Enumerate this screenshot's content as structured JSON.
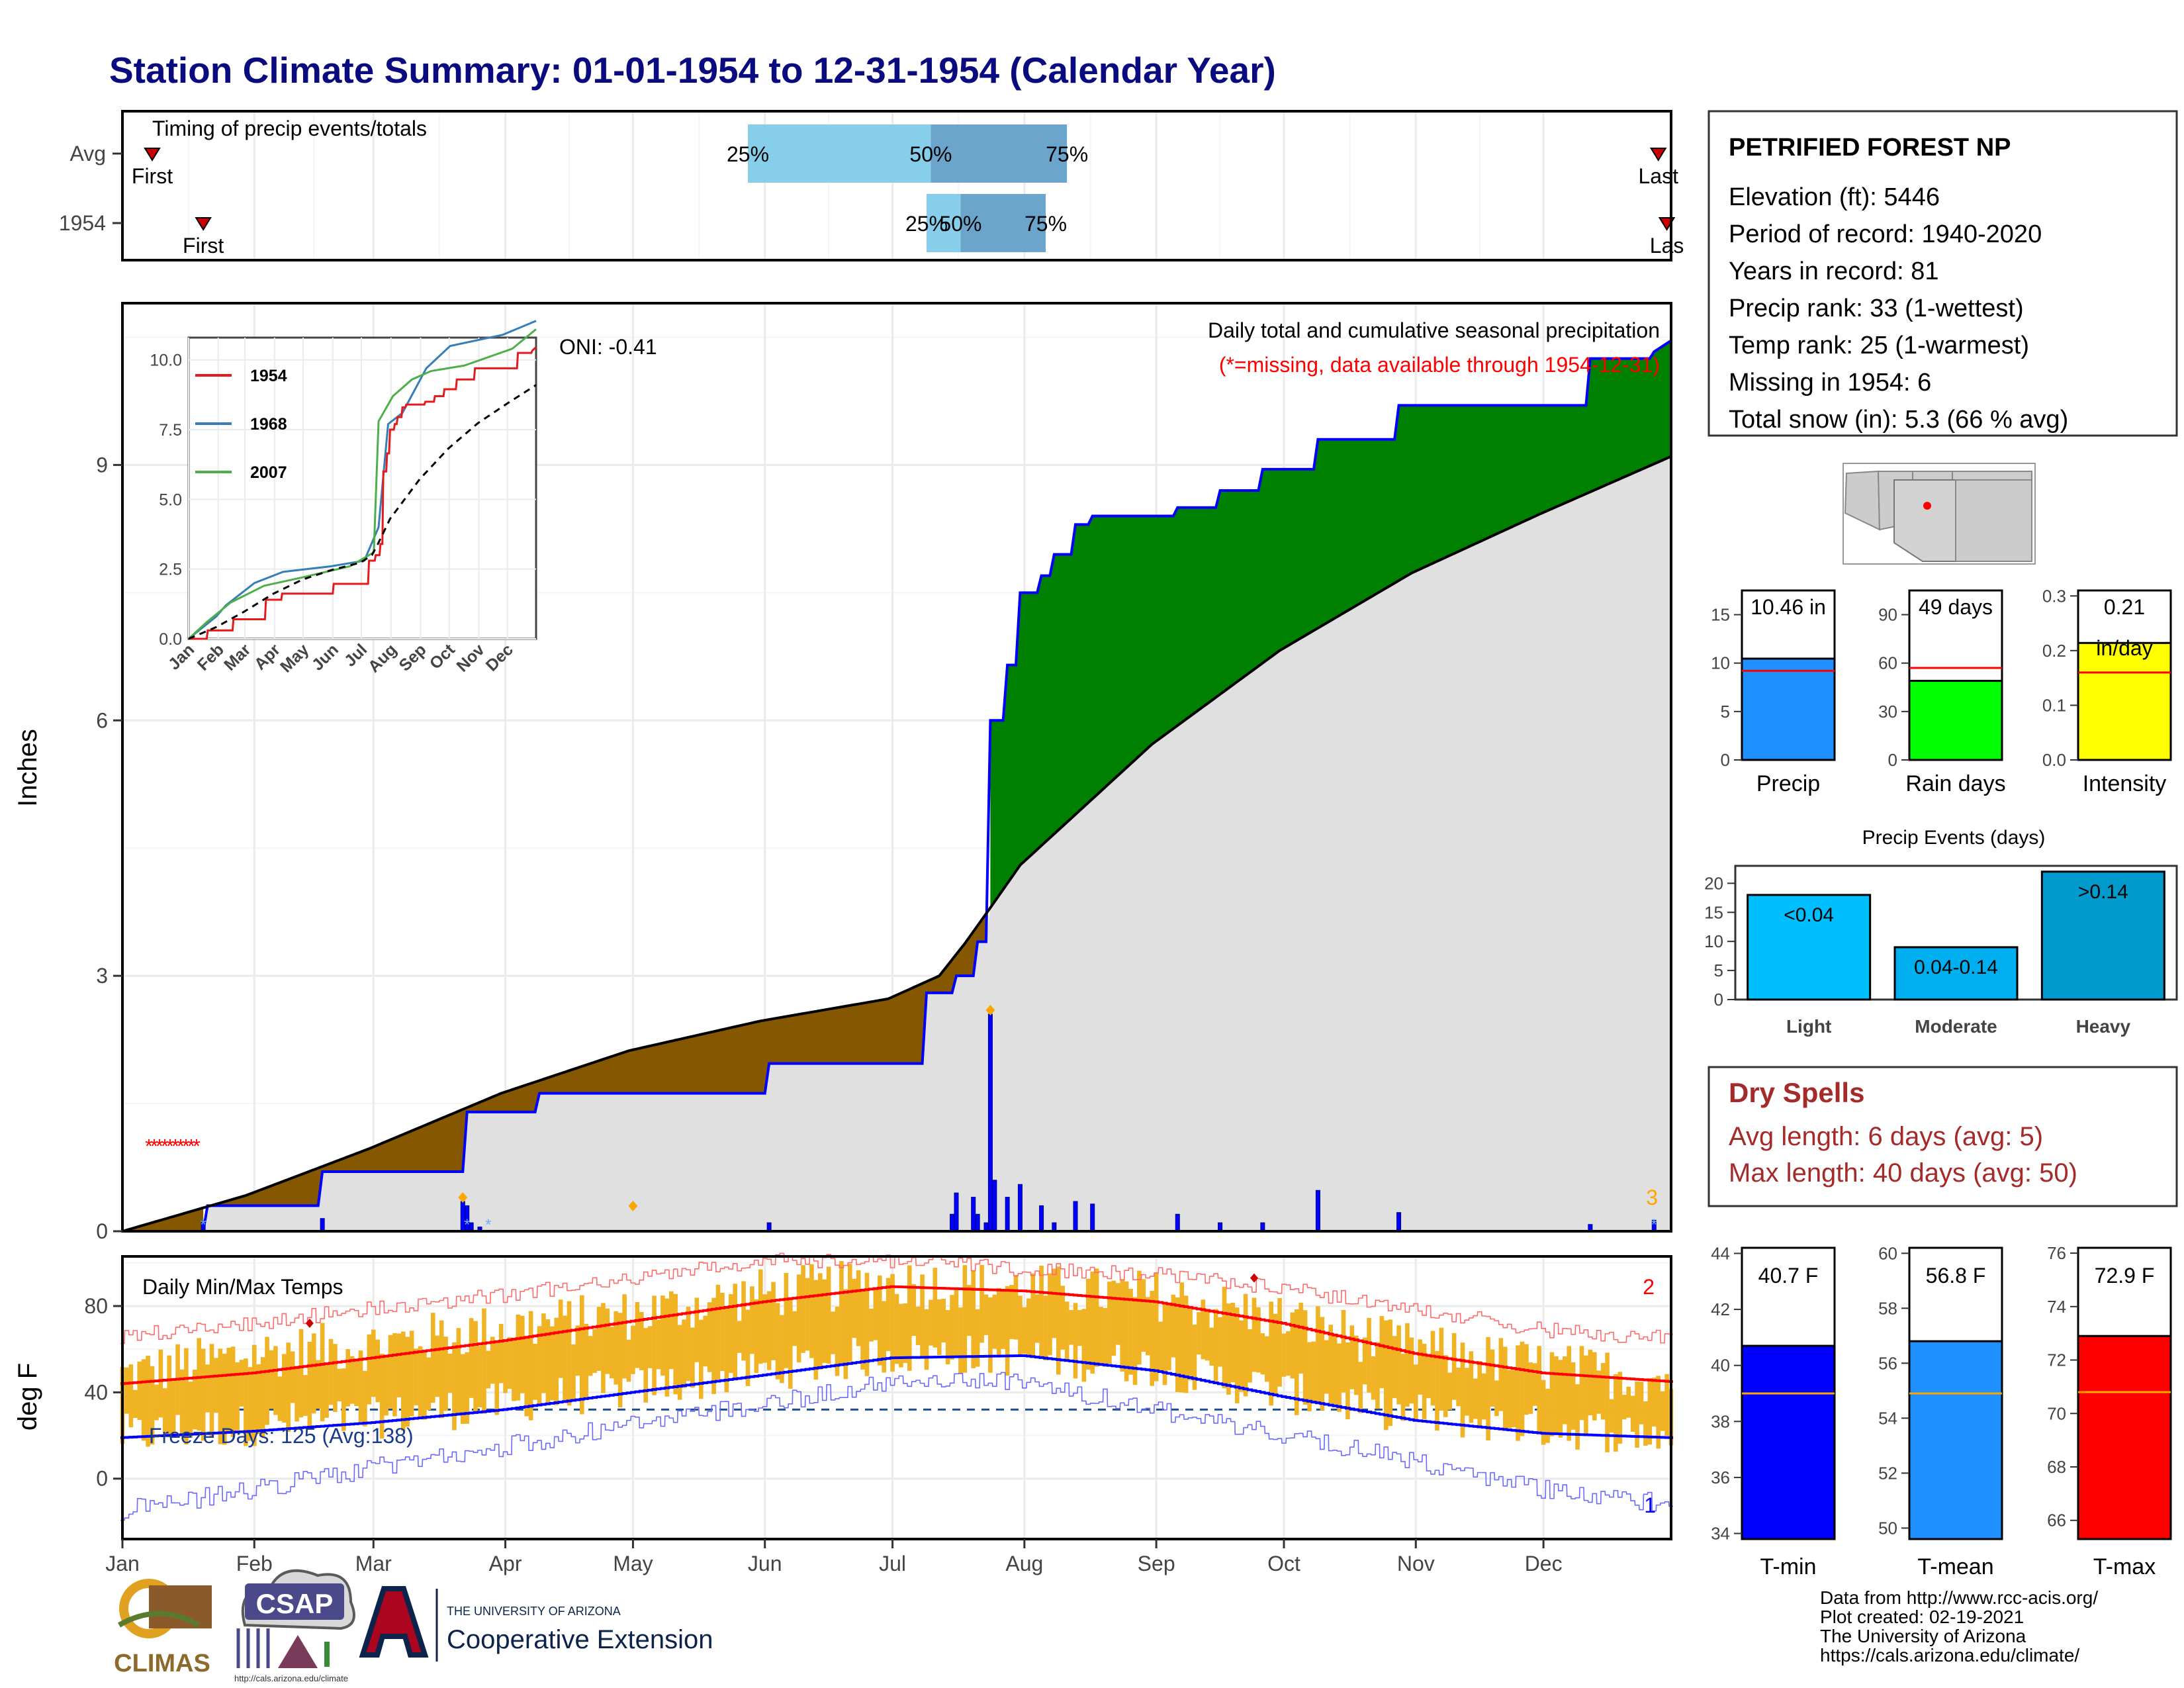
{
  "title": "Station Climate Summary: 01-01-1954 to 12-31-1954 (Calendar Year)",
  "months": [
    "Jan",
    "Feb",
    "Mar",
    "Apr",
    "May",
    "Jun",
    "Jul",
    "Aug",
    "Sep",
    "Oct",
    "Nov",
    "Dec"
  ],
  "colors": {
    "title": "#0b0b80",
    "quart_light": "#87ceeb",
    "quart_dark": "#6ba5cc",
    "above_avg": "#008000",
    "below_avg": "#855700",
    "base_fill": "#e0e0e0",
    "precip_line": "#0000ff",
    "tmax": "#ff0000",
    "tmin": "#0000ff",
    "range_bar": "#efb324",
    "dry_spells": "#a52a2a",
    "missing": "#ff0000",
    "extreme_marker": "#ffa500"
  },
  "timing_panel": {
    "label": "Timing of precip events/totals",
    "rows": [
      {
        "name": "Avg",
        "first_label": "First",
        "last_label": "Last",
        "first_doy": 8,
        "last_doy": 362,
        "q25_doy": 148,
        "q50_doy": 191,
        "q75_doy": 223,
        "q25_label": "25%",
        "q50_label": "50%",
        "q75_label": "75%"
      },
      {
        "name": "1954",
        "first_label": "First",
        "last_label": "Las",
        "first_doy": 20,
        "last_doy": 364,
        "q25_doy": 190,
        "q50_doy": 198,
        "q75_doy": 218,
        "q25_label": "25%",
        "q50_label": "50%",
        "q75_label": "75%"
      }
    ]
  },
  "precip_panel": {
    "ylabel": "Inches",
    "yticks": [
      "0",
      "3",
      "6",
      "9"
    ],
    "oni_label": "ONI: -0.41",
    "caption": "Daily total and cumulative seasonal precipitation",
    "missing_note": "(*=missing, data available through 1954-12-31)",
    "count_label": "3"
  },
  "inset": {
    "yticks": [
      "0.0",
      "2.5",
      "5.0",
      "7.5",
      "10.0"
    ],
    "xticks": [
      "Jan",
      "Feb",
      "Mar",
      "Apr",
      "May",
      "Jun",
      "Jul",
      "Aug",
      "Sep",
      "Oct",
      "Nov",
      "Dec"
    ],
    "legend": [
      {
        "name": "1954",
        "color": "#e41a1c"
      },
      {
        "name": "1968",
        "color": "#377eb8"
      },
      {
        "name": "2007",
        "color": "#4daf4a"
      }
    ]
  },
  "temp_panel": {
    "label": "Daily Min/Max Temps",
    "ylabel": "deg F",
    "yticks": [
      "0",
      "40",
      "80"
    ],
    "freeze_label": "Freeze Days: 125 (Avg:138)",
    "count_max_label": "2",
    "count_min_label": "1"
  },
  "station": {
    "name": "PETRIFIED FOREST NP",
    "lines": [
      "Elevation (ft): 5446",
      "Period of record: 1940-2020",
      "Years in record: 81",
      "Precip rank: 33 (1-wettest)",
      "Temp rank: 25 (1-warmest)",
      "Missing in 1954: 6",
      "Total snow (in): 5.3 (66 % avg)"
    ]
  },
  "summary_bars": {
    "precip": {
      "label": "Precip",
      "value_label": "10.46 in",
      "value": 10.46,
      "avg": 9.2,
      "max": 17.5,
      "ticks": [
        "0",
        "5",
        "10",
        "15"
      ],
      "tick_values": [
        0,
        5,
        10,
        15
      ],
      "color": "#1e90ff"
    },
    "rain_days": {
      "label": "Rain days",
      "value_label": "49 days",
      "value": 49,
      "avg": 57,
      "max": 105,
      "ticks": [
        "0",
        "30",
        "60",
        "90"
      ],
      "tick_values": [
        0,
        30,
        60,
        90
      ],
      "color": "#00ff00"
    },
    "intensity": {
      "label": "Intensity",
      "value_label": "0.21",
      "value_label2": "in/day",
      "value": 0.214,
      "avg": 0.16,
      "max": 0.31,
      "ticks": [
        "0.0",
        "0.1",
        "0.2",
        "0.3"
      ],
      "tick_values": [
        0,
        0.1,
        0.2,
        0.3
      ],
      "color": "#ffff00"
    }
  },
  "events": {
    "title": "Precip Events (days)",
    "ticks": [
      "0",
      "5",
      "10",
      "15",
      "20"
    ],
    "bars": [
      {
        "name": "Light",
        "value_label": "<0.04",
        "value": 18,
        "color": "#00bfff"
      },
      {
        "name": "Moderate",
        "value_label": "0.04-0.14",
        "value": 9,
        "color": "#00afef"
      },
      {
        "name": "Heavy",
        "value_label": ">0.14",
        "value": 22,
        "color": "#009acd"
      }
    ]
  },
  "dry_spells": {
    "title": "Dry Spells",
    "avg_line": "Avg length: 6 days (avg: 5)",
    "max_line": "Max length: 40 days (avg: 50)"
  },
  "temp_bars": {
    "tmin": {
      "label": "T-min",
      "value_label": "40.7 F",
      "value": 40.7,
      "avg": 39.0,
      "min": 33.8,
      "max": 44.2,
      "ticks": [
        "34",
        "36",
        "38",
        "40",
        "42",
        "44"
      ],
      "tick_values": [
        34,
        36,
        38,
        40,
        42,
        44
      ],
      "color": "#0000ff"
    },
    "tmean": {
      "label": "T-mean",
      "value_label": "56.8 F",
      "value": 56.8,
      "avg": 54.9,
      "min": 49.6,
      "max": 60.2,
      "ticks": [
        "50",
        "52",
        "54",
        "56",
        "58",
        "60"
      ],
      "tick_values": [
        50,
        52,
        54,
        56,
        58,
        60
      ],
      "color": "#1e90ff"
    },
    "tmax": {
      "label": "T-max",
      "value_label": "72.9 F",
      "value": 72.9,
      "avg": 70.8,
      "min": 65.3,
      "max": 76.2,
      "ticks": [
        "66",
        "68",
        "70",
        "72",
        "74",
        "76"
      ],
      "tick_values": [
        66,
        68,
        70,
        72,
        74,
        76
      ],
      "color": "#ff0000"
    }
  },
  "footer": {
    "lines": [
      "Data from http://www.rcc-acis.org/",
      "Plot created: 02-19-2021",
      "The University of Arizona",
      "https://cals.arizona.edu/climate/"
    ],
    "climas": "CLIMAS",
    "csap": "CSAP",
    "csap_url": "http://cals.arizona.edu/climate",
    "ua_small": "THE UNIVERSITY OF ARIZONA",
    "ua_big": "Cooperative Extension"
  },
  "chart_data": [
    {
      "type": "area",
      "title": "Daily total and cumulative seasonal precipitation",
      "ylabel": "Inches",
      "ylim": [
        0,
        10.9
      ],
      "x_unit": "day of year (1954)",
      "series": [
        {
          "name": "cumulative 1954",
          "x": [
            1,
            20,
            21,
            47,
            48,
            81,
            82,
            98,
            99,
            152,
            153,
            189,
            190,
            196,
            197,
            201,
            202,
            204,
            205,
            208,
            209,
            211,
            212,
            216,
            217,
            219,
            220,
            224,
            225,
            228,
            229,
            248,
            249,
            258,
            259,
            268,
            269,
            281,
            282,
            300,
            301,
            345,
            346,
            360,
            361,
            365
          ],
          "y": [
            0.0,
            0.0,
            0.3,
            0.3,
            0.7,
            0.7,
            1.4,
            1.4,
            1.62,
            1.62,
            1.97,
            1.97,
            2.8,
            2.8,
            3.0,
            3.0,
            3.4,
            3.4,
            6.0,
            6.0,
            6.65,
            6.65,
            7.5,
            7.5,
            7.7,
            7.7,
            7.95,
            7.95,
            8.3,
            8.3,
            8.4,
            8.4,
            8.5,
            8.5,
            8.7,
            8.7,
            8.95,
            8.95,
            9.3,
            9.3,
            9.7,
            9.7,
            10.25,
            10.25,
            10.33,
            10.46
          ]
        },
        {
          "name": "average cumulative",
          "x": [
            1,
            30,
            59,
            90,
            120,
            151,
            181,
            193,
            199,
            205,
            212,
            243,
            273,
            304,
            334,
            365
          ],
          "y": [
            0.0,
            0.42,
            0.97,
            1.62,
            2.12,
            2.47,
            2.73,
            3.0,
            3.38,
            3.8,
            4.3,
            5.72,
            6.82,
            7.73,
            8.42,
            9.1
          ]
        }
      ]
    },
    {
      "type": "bar",
      "title": "Daily precipitation",
      "unit": "inches",
      "x": [
        20,
        48,
        81,
        82,
        83,
        85,
        153,
        196,
        197,
        201,
        202,
        204,
        205,
        206,
        209,
        212,
        217,
        220,
        225,
        229,
        249,
        259,
        269,
        282,
        301,
        346,
        361
      ],
      "values": [
        0.12,
        0.15,
        0.35,
        0.3,
        0.1,
        0.05,
        0.1,
        0.2,
        0.45,
        0.4,
        0.2,
        0.1,
        2.55,
        0.6,
        0.4,
        0.55,
        0.3,
        0.1,
        0.35,
        0.32,
        0.2,
        0.1,
        0.1,
        0.48,
        0.22,
        0.08,
        0.13
      ]
    },
    {
      "type": "line",
      "title": "Daily Min/Max Temps",
      "ylabel": "deg F",
      "ylim": [
        -28,
        103
      ],
      "x_unit": "day of year (1954)",
      "series": [
        {
          "name": "avg tmax",
          "x": [
            1,
            32,
            60,
            91,
            121,
            152,
            182,
            213,
            244,
            274,
            305,
            335,
            365
          ],
          "y": [
            44,
            49,
            56,
            64,
            73,
            82,
            89,
            87,
            82,
            72,
            58,
            49,
            45
          ]
        },
        {
          "name": "avg tmin",
          "x": [
            1,
            32,
            60,
            91,
            121,
            152,
            182,
            213,
            244,
            274,
            305,
            335,
            365
          ],
          "y": [
            19,
            22,
            26,
            32,
            40,
            48,
            56,
            57,
            50,
            38,
            27,
            21,
            19
          ]
        },
        {
          "name": "record high",
          "x": [
            1,
            32,
            60,
            91,
            121,
            152,
            182,
            213,
            244,
            274,
            305,
            335,
            365
          ],
          "y": [
            66,
            72,
            79,
            85,
            93,
            101,
            101,
            97,
            95,
            88,
            79,
            69,
            65
          ]
        },
        {
          "name": "record low",
          "x": [
            1,
            32,
            60,
            91,
            121,
            152,
            182,
            213,
            244,
            274,
            305,
            335,
            365
          ],
          "y": [
            -15,
            -5,
            5,
            15,
            25,
            35,
            44,
            45,
            32,
            20,
            8,
            -5,
            -12
          ]
        },
        {
          "name": "1954 tmax",
          "x": [
            1,
            32,
            60,
            91,
            121,
            152,
            182,
            213,
            244,
            274,
            305,
            335,
            365
          ],
          "y": [
            48,
            58,
            62,
            70,
            76,
            86,
            91,
            88,
            85,
            74,
            60,
            52,
            46
          ]
        },
        {
          "name": "1954 tmin",
          "x": [
            1,
            32,
            60,
            91,
            121,
            152,
            182,
            213,
            244,
            274,
            305,
            335,
            365
          ],
          "y": [
            20,
            25,
            28,
            35,
            42,
            50,
            58,
            57,
            52,
            40,
            30,
            24,
            20
          ]
        }
      ]
    }
  ]
}
